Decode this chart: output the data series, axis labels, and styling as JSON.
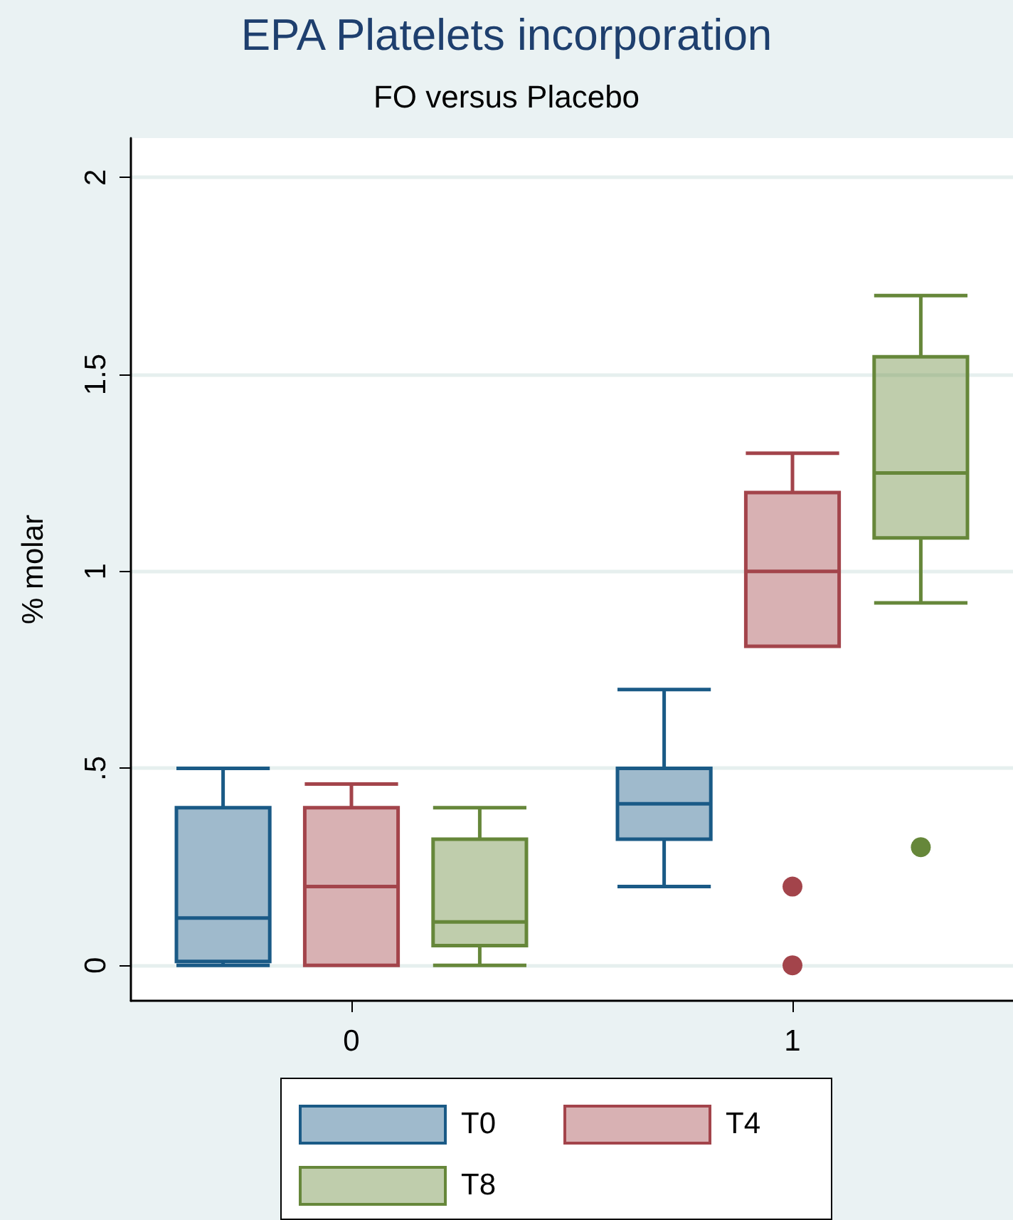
{
  "chart_data": {
    "type": "box",
    "title": "EPA Platelets incorporation",
    "subtitle": "FO versus Placebo",
    "ylabel": "% molar",
    "categories": [
      "0",
      "1"
    ],
    "ylim": [
      -0.09,
      2.1
    ],
    "yticks": [
      0,
      {
        "value": 0.5,
        "label": ".5"
      },
      1,
      1.5,
      2
    ],
    "grid": "y",
    "legend": "bottom",
    "series": [
      {
        "name": "T0",
        "color": "#1a5a86",
        "boxes": [
          {
            "low": 0,
            "q1": 0.01,
            "median": 0.12,
            "q3": 0.4,
            "high": 0.5
          },
          {
            "low": 0.2,
            "q1": 0.32,
            "median": 0.41,
            "q3": 0.5,
            "high": 0.7
          }
        ]
      },
      {
        "name": "T4",
        "color": "#a3444b",
        "boxes": [
          {
            "low": 0,
            "q1": 0,
            "median": 0.2,
            "q3": 0.4,
            "high": 0.46
          },
          {
            "low": 0.81,
            "q1": 0.81,
            "median": 1,
            "q3": 1.2,
            "high": 1.3,
            "outliers": [
              0.2,
              0
            ]
          }
        ]
      },
      {
        "name": "T8",
        "color": "#66873a",
        "boxes": [
          {
            "low": 0,
            "q1": 0.05,
            "median": 0.11,
            "q3": 0.32,
            "high": 0.4
          },
          {
            "low": 0.92,
            "q1": 1.085,
            "median": 1.25,
            "q3": 1.545,
            "high": 1.7,
            "outliers": [
              0.3
            ]
          }
        ]
      }
    ]
  }
}
